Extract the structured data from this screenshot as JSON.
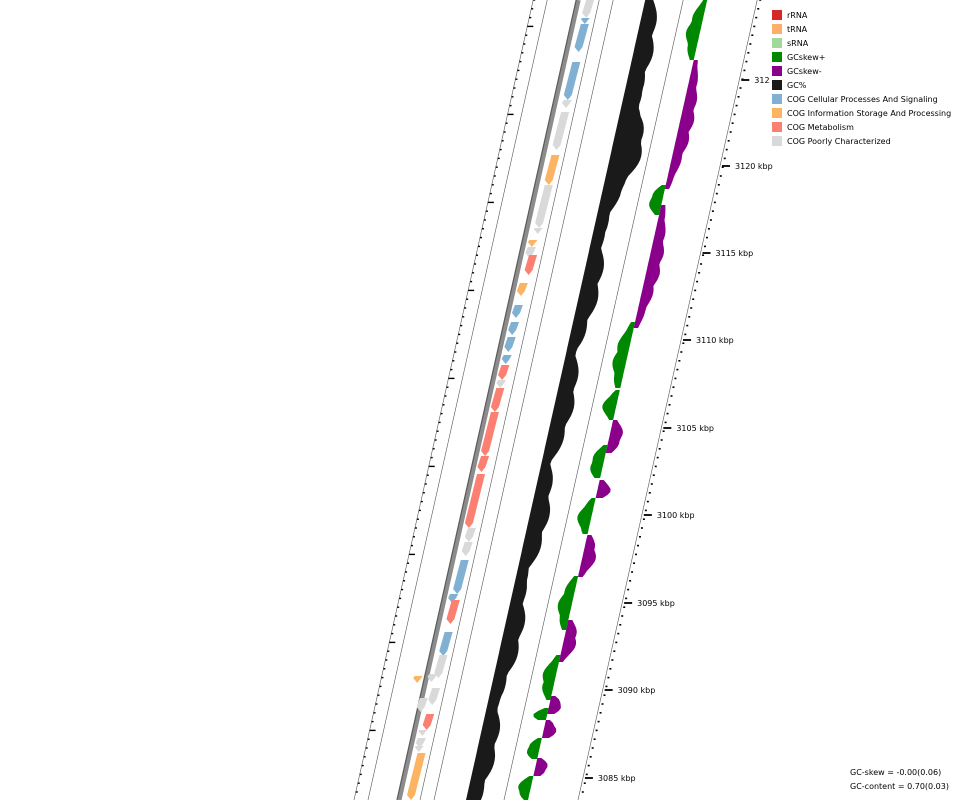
{
  "legend": {
    "items": [
      {
        "label": "rRNA",
        "color": "#d62728"
      },
      {
        "label": "tRNA",
        "color": "#fdae6b"
      },
      {
        "label": "sRNA",
        "color": "#a1d99b"
      },
      {
        "label": "GCskew+",
        "color": "#008800"
      },
      {
        "label": "GCskew-",
        "color": "#8b008b"
      },
      {
        "label": "GC%",
        "color": "#1a1a1a"
      },
      {
        "label": "COG Cellular Processes And Signaling",
        "color": "#80b1d3"
      },
      {
        "label": "COG Information Storage And Processing",
        "color": "#fdb462"
      },
      {
        "label": "COG Metabolism",
        "color": "#fb8072"
      },
      {
        "label": "COG Poorly Characterized",
        "color": "#d9d9d9"
      }
    ]
  },
  "axis": {
    "labels": [
      "3085 kbp",
      "3090 kbp",
      "3095 kbp",
      "3100 kbp",
      "3105 kbp",
      "3110 kbp",
      "3115 kbp",
      "3120 kbp",
      "312"
    ]
  },
  "stats": {
    "gc_skew": "GC-skew = -0.00(0.06)",
    "gc_content": "GC-content = 0.70(0.03)"
  }
}
